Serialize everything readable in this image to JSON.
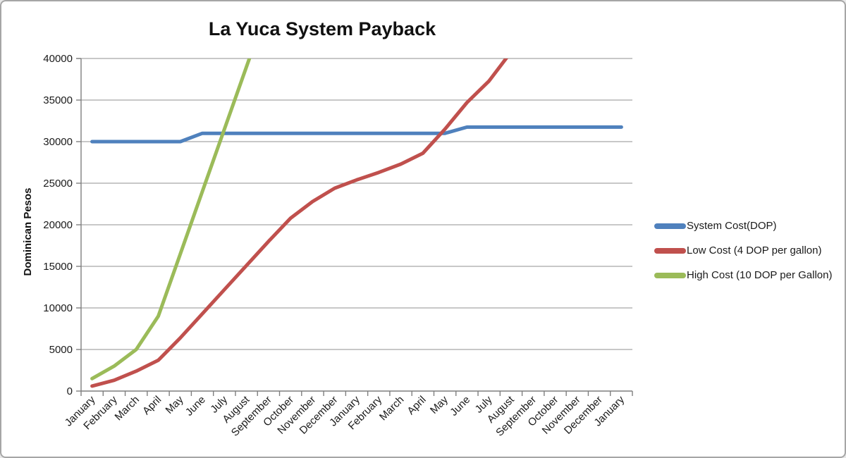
{
  "chart_data": {
    "type": "line",
    "title": "La Yuca System Payback",
    "xlabel": "",
    "ylabel": "Dominican Pesos",
    "ylim": [
      0,
      40000
    ],
    "ytick_step": 5000,
    "grid": true,
    "legend_position": "right",
    "axis_color": "#7f7f7f",
    "gridline_color": "#a6a6a6",
    "tick_label_color": "#1a1a1a",
    "categories": [
      "January",
      "February",
      "March",
      "April",
      "May",
      "June",
      "July",
      "August",
      "September",
      "October",
      "November",
      "December",
      "January",
      "February",
      "March",
      "April",
      "May",
      "June",
      "July",
      "August",
      "September",
      "October",
      "November",
      "December",
      "January"
    ],
    "series": [
      {
        "name": "System Cost(DOP)",
        "color": "#4F81BD",
        "values": [
          30000,
          30000,
          30000,
          30000,
          30000,
          31000,
          31000,
          31000,
          31000,
          31000,
          31000,
          31000,
          31000,
          31000,
          31000,
          31000,
          31000,
          31750,
          31750,
          31750,
          31750,
          31750,
          31750,
          31750,
          31750
        ]
      },
      {
        "name": "Low Cost (4 DOP per gallon)",
        "color": "#C0504D",
        "values": [
          600,
          1300,
          2400,
          3700,
          6400,
          9300,
          12200,
          15100,
          18000,
          20800,
          22800,
          24400,
          25400,
          26300,
          27300,
          28600,
          31500,
          34700,
          37300,
          40800,
          null,
          null,
          null,
          null,
          null
        ]
      },
      {
        "name": "High Cost (10 DOP per Gallon)",
        "color": "#9BBB59",
        "values": [
          1500,
          3000,
          5000,
          9000,
          16500,
          24000,
          31500,
          39000,
          46500,
          null,
          null,
          null,
          null,
          null,
          null,
          null,
          null,
          null,
          null,
          null,
          null,
          null,
          null,
          null,
          null
        ]
      }
    ]
  }
}
